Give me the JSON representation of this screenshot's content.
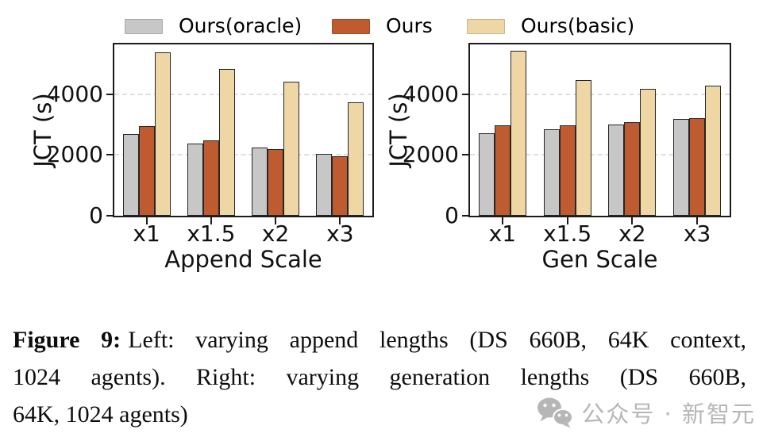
{
  "legend": {
    "items": [
      {
        "label": "Ours(oracle)",
        "color": "#c7c7c7"
      },
      {
        "label": "Ours",
        "color": "#bf5b30"
      },
      {
        "label": "Ours(basic)",
        "color": "#eed7a4"
      }
    ]
  },
  "chart_data": [
    {
      "type": "bar",
      "categories": [
        "x1",
        "x1.5",
        "x2",
        "x3"
      ],
      "series": [
        {
          "name": "Ours(oracle)",
          "color": "#c7c7c7",
          "values": [
            2680,
            2370,
            2230,
            2030
          ]
        },
        {
          "name": "Ours",
          "color": "#bf5b30",
          "values": [
            2940,
            2470,
            2200,
            1960
          ]
        },
        {
          "name": "Ours(basic)",
          "color": "#eed7a4",
          "values": [
            5370,
            4810,
            4400,
            3720
          ]
        }
      ],
      "xlabel": "Append Scale",
      "ylabel": "JCT (s)",
      "yticks": [
        0,
        2000,
        4000
      ],
      "ylim": [
        0,
        5630
      ],
      "grid": true,
      "legend_position": "top"
    },
    {
      "type": "bar",
      "categories": [
        "x1",
        "x1.5",
        "x2",
        "x3"
      ],
      "series": [
        {
          "name": "Ours(oracle)",
          "color": "#c7c7c7",
          "values": [
            2700,
            2840,
            3000,
            3180
          ]
        },
        {
          "name": "Ours",
          "color": "#bf5b30",
          "values": [
            2980,
            2960,
            3070,
            3200
          ]
        },
        {
          "name": "Ours(basic)",
          "color": "#eed7a4",
          "values": [
            5430,
            4460,
            4170,
            4270
          ]
        }
      ],
      "xlabel": "Gen Scale",
      "ylabel": "JCT (s)",
      "yticks": [
        0,
        2000,
        4000
      ],
      "ylim": [
        0,
        5630
      ],
      "grid": true,
      "legend_position": "top"
    }
  ],
  "caption": {
    "label": "Figure 9:",
    "lines": [
      "Left: varying append lengths (DS 660B, 64K context,",
      "1024 agents). Right: varying generation lengths (DS 660B,",
      "64K, 1024 agents)"
    ]
  },
  "watermark": {
    "text": "公众号 · 新智元",
    "color": "#b6b6b6",
    "icon": "wechat-icon"
  }
}
